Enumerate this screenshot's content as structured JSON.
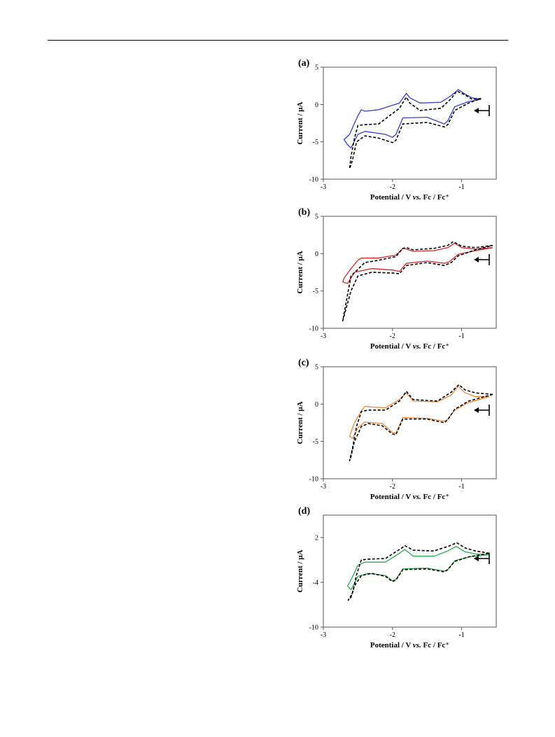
{
  "charts": [
    {
      "label": "(a)",
      "type": "line",
      "xlabel": "Potential / V vs. Fc / Fc⁺",
      "ylabel": "Current / µA",
      "xlim": [
        -3,
        -0.5
      ],
      "ylim": [
        -10,
        5
      ],
      "xticks": [
        -3,
        -2,
        -1
      ],
      "yticks": [
        5,
        0,
        -5,
        -10
      ],
      "color": "#3c3cd2",
      "dashed_color": "#000000",
      "scan_direction": "left",
      "solid": [
        [
          -0.72,
          0.7
        ],
        [
          -0.85,
          0.9
        ],
        [
          -0.95,
          1.4
        ],
        [
          -1.05,
          2.0
        ],
        [
          -1.15,
          1.2
        ],
        [
          -1.3,
          0.3
        ],
        [
          -1.6,
          0.2
        ],
        [
          -1.75,
          0.9
        ],
        [
          -1.8,
          1.5
        ],
        [
          -1.9,
          0.2
        ],
        [
          -2.2,
          -0.7
        ],
        [
          -2.4,
          -0.9
        ],
        [
          -2.45,
          -0.7
        ],
        [
          -2.5,
          -1.5
        ],
        [
          -2.55,
          -2.5
        ],
        [
          -2.62,
          -4.0
        ],
        [
          -2.7,
          -4.7
        ],
        [
          -2.65,
          -5.4
        ],
        [
          -2.6,
          -5.8
        ],
        [
          -2.5,
          -4.0
        ],
        [
          -2.4,
          -3.6
        ],
        [
          -2.1,
          -4.0
        ],
        [
          -2.0,
          -4.4
        ],
        [
          -1.95,
          -4.0
        ],
        [
          -1.85,
          -1.8
        ],
        [
          -1.5,
          -1.7
        ],
        [
          -1.25,
          -2.6
        ],
        [
          -1.2,
          -2.2
        ],
        [
          -1.1,
          -0.3
        ],
        [
          -0.9,
          0.4
        ],
        [
          -0.72,
          0.7
        ]
      ],
      "dashed": [
        [
          -0.72,
          0.8
        ],
        [
          -0.85,
          0.7
        ],
        [
          -0.95,
          1.3
        ],
        [
          -1.07,
          1.8
        ],
        [
          -1.15,
          0.8
        ],
        [
          -1.3,
          -0.5
        ],
        [
          -1.6,
          -0.8
        ],
        [
          -1.75,
          0.2
        ],
        [
          -1.8,
          1.0
        ],
        [
          -1.9,
          -0.5
        ],
        [
          -2.2,
          -2.6
        ],
        [
          -2.4,
          -2.7
        ],
        [
          -2.5,
          -2.8
        ],
        [
          -2.55,
          -4.5
        ],
        [
          -2.6,
          -7.0
        ],
        [
          -2.62,
          -8.6
        ],
        [
          -2.58,
          -7.5
        ],
        [
          -2.52,
          -5.0
        ],
        [
          -2.4,
          -4.2
        ],
        [
          -2.2,
          -4.5
        ],
        [
          -2.0,
          -5.1
        ],
        [
          -1.95,
          -4.8
        ],
        [
          -1.85,
          -2.6
        ],
        [
          -1.5,
          -2.4
        ],
        [
          -1.25,
          -3.0
        ],
        [
          -1.2,
          -2.7
        ],
        [
          -1.1,
          -0.8
        ],
        [
          -0.9,
          0.2
        ],
        [
          -0.72,
          0.8
        ]
      ]
    },
    {
      "label": "(b)",
      "type": "line",
      "xlabel": "Potential / V vs. Fc / Fc⁺",
      "ylabel": "Current / µA",
      "xlim": [
        -3,
        -0.5
      ],
      "ylim": [
        -10,
        5
      ],
      "xticks": [
        -3,
        -2,
        -1
      ],
      "yticks": [
        5,
        0,
        -5,
        -10
      ],
      "color": "#d22828",
      "dashed_color": "#000000",
      "scan_direction": "left",
      "solid": [
        [
          -0.55,
          0.8
        ],
        [
          -0.8,
          0.6
        ],
        [
          -1.0,
          0.8
        ],
        [
          -1.1,
          1.4
        ],
        [
          -1.2,
          0.8
        ],
        [
          -1.4,
          0.4
        ],
        [
          -1.7,
          0.3
        ],
        [
          -1.8,
          0.6
        ],
        [
          -1.85,
          0.7
        ],
        [
          -1.95,
          -0.2
        ],
        [
          -2.2,
          -0.6
        ],
        [
          -2.45,
          -0.6
        ],
        [
          -2.5,
          -0.9
        ],
        [
          -2.6,
          -2.0
        ],
        [
          -2.7,
          -3.3
        ],
        [
          -2.72,
          -3.8
        ],
        [
          -2.65,
          -4.0
        ],
        [
          -2.55,
          -2.5
        ],
        [
          -2.3,
          -2.0
        ],
        [
          -2.0,
          -2.2
        ],
        [
          -1.9,
          -2.4
        ],
        [
          -1.8,
          -1.3
        ],
        [
          -1.5,
          -1.0
        ],
        [
          -1.25,
          -1.3
        ],
        [
          -1.18,
          -1.1
        ],
        [
          -1.05,
          -0.1
        ],
        [
          -0.8,
          0.4
        ],
        [
          -0.55,
          0.8
        ]
      ],
      "dashed": [
        [
          -0.55,
          1.1
        ],
        [
          -0.8,
          0.8
        ],
        [
          -1.0,
          1.0
        ],
        [
          -1.12,
          1.6
        ],
        [
          -1.2,
          1.1
        ],
        [
          -1.4,
          0.7
        ],
        [
          -1.7,
          0.5
        ],
        [
          -1.8,
          0.8
        ],
        [
          -1.85,
          0.7
        ],
        [
          -1.95,
          -0.4
        ],
        [
          -2.2,
          -0.9
        ],
        [
          -2.4,
          -1.2
        ],
        [
          -2.6,
          -3.0
        ],
        [
          -2.66,
          -6.0
        ],
        [
          -2.72,
          -9.0
        ],
        [
          -2.66,
          -7.0
        ],
        [
          -2.6,
          -5.0
        ],
        [
          -2.5,
          -3.0
        ],
        [
          -2.3,
          -2.5
        ],
        [
          -2.0,
          -2.6
        ],
        [
          -1.9,
          -2.7
        ],
        [
          -1.8,
          -1.6
        ],
        [
          -1.5,
          -1.2
        ],
        [
          -1.25,
          -1.6
        ],
        [
          -1.15,
          -1.2
        ],
        [
          -1.05,
          -0.3
        ],
        [
          -0.8,
          0.5
        ],
        [
          -0.55,
          1.1
        ]
      ]
    },
    {
      "label": "(c)",
      "type": "line",
      "xlabel": "Potential / V vs. Fc / Fc⁺",
      "ylabel": "Current / µA",
      "xlim": [
        -3,
        -0.5
      ],
      "ylim": [
        -10,
        5
      ],
      "xticks": [
        -3,
        -2,
        -1
      ],
      "yticks": [
        5,
        0,
        -5,
        -10
      ],
      "color": "#e8883c",
      "dashed_color": "#000000",
      "scan_direction": "left",
      "solid": [
        [
          -0.6,
          1.0
        ],
        [
          -0.8,
          1.0
        ],
        [
          -0.95,
          1.5
        ],
        [
          -1.05,
          2.4
        ],
        [
          -1.15,
          1.2
        ],
        [
          -1.35,
          0.3
        ],
        [
          -1.7,
          0.4
        ],
        [
          -1.8,
          1.5
        ],
        [
          -1.9,
          0.6
        ],
        [
          -2.1,
          -0.5
        ],
        [
          -2.3,
          -0.4
        ],
        [
          -2.4,
          -0.3
        ],
        [
          -2.45,
          -0.9
        ],
        [
          -2.55,
          -2.5
        ],
        [
          -2.62,
          -4.3
        ],
        [
          -2.58,
          -4.6
        ],
        [
          -2.5,
          -3.2
        ],
        [
          -2.4,
          -2.4
        ],
        [
          -2.15,
          -2.6
        ],
        [
          -2.0,
          -3.8
        ],
        [
          -1.95,
          -3.9
        ],
        [
          -1.85,
          -1.8
        ],
        [
          -1.5,
          -1.9
        ],
        [
          -1.25,
          -2.3
        ],
        [
          -1.2,
          -2.0
        ],
        [
          -1.1,
          -0.8
        ],
        [
          -0.9,
          0.2
        ],
        [
          -0.6,
          1.0
        ]
      ],
      "dashed": [
        [
          -0.55,
          1.3
        ],
        [
          -0.8,
          1.5
        ],
        [
          -0.95,
          1.9
        ],
        [
          -1.04,
          2.6
        ],
        [
          -1.15,
          1.6
        ],
        [
          -1.35,
          0.4
        ],
        [
          -1.7,
          0.6
        ],
        [
          -1.8,
          1.7
        ],
        [
          -1.9,
          0.4
        ],
        [
          -2.1,
          -0.8
        ],
        [
          -2.35,
          -0.8
        ],
        [
          -2.45,
          -1.0
        ],
        [
          -2.52,
          -3.0
        ],
        [
          -2.58,
          -6.0
        ],
        [
          -2.62,
          -7.6
        ],
        [
          -2.6,
          -7.0
        ],
        [
          -2.55,
          -5.0
        ],
        [
          -2.45,
          -3.0
        ],
        [
          -2.35,
          -2.6
        ],
        [
          -2.15,
          -2.9
        ],
        [
          -2.0,
          -4.0
        ],
        [
          -1.95,
          -4.1
        ],
        [
          -1.85,
          -2.0
        ],
        [
          -1.5,
          -2.0
        ],
        [
          -1.25,
          -2.5
        ],
        [
          -1.2,
          -2.1
        ],
        [
          -1.1,
          -0.7
        ],
        [
          -0.9,
          0.4
        ],
        [
          -0.55,
          1.3
        ]
      ]
    },
    {
      "label": "(d)",
      "type": "line",
      "xlabel": "Potential / V vs. Fc / Fc⁺",
      "ylabel": "Current / µA",
      "xlim": [
        -3,
        -0.5
      ],
      "ylim": [
        -10,
        5
      ],
      "xticks": [
        -3,
        -2,
        -1
      ],
      "yticks": [
        2,
        -4,
        -10
      ],
      "color": "#2aa852",
      "dashed_color": "#000000",
      "scan_direction": "left",
      "solid": [
        [
          -0.6,
          -0.3
        ],
        [
          -0.8,
          -0.2
        ],
        [
          -0.95,
          0.1
        ],
        [
          -1.08,
          0.8
        ],
        [
          -1.2,
          0.2
        ],
        [
          -1.4,
          -0.5
        ],
        [
          -1.7,
          -0.5
        ],
        [
          -1.82,
          0.4
        ],
        [
          -1.9,
          -0.1
        ],
        [
          -2.1,
          -1.3
        ],
        [
          -2.4,
          -1.3
        ],
        [
          -2.5,
          -1.7
        ],
        [
          -2.58,
          -3.3
        ],
        [
          -2.65,
          -4.5
        ],
        [
          -2.6,
          -5.0
        ],
        [
          -2.5,
          -3.2
        ],
        [
          -2.35,
          -2.8
        ],
        [
          -2.1,
          -3.1
        ],
        [
          -2.0,
          -3.8
        ],
        [
          -1.95,
          -3.6
        ],
        [
          -1.85,
          -2.2
        ],
        [
          -1.5,
          -2.1
        ],
        [
          -1.25,
          -2.5
        ],
        [
          -1.2,
          -2.3
        ],
        [
          -1.1,
          -1.1
        ],
        [
          -0.9,
          -0.6
        ],
        [
          -0.6,
          -0.3
        ]
      ],
      "dashed": [
        [
          -0.6,
          -0.1
        ],
        [
          -0.8,
          0.2
        ],
        [
          -0.95,
          0.6
        ],
        [
          -1.07,
          1.3
        ],
        [
          -1.2,
          0.8
        ],
        [
          -1.4,
          0.2
        ],
        [
          -1.7,
          0.3
        ],
        [
          -1.82,
          0.9
        ],
        [
          -1.9,
          0.4
        ],
        [
          -2.1,
          -0.8
        ],
        [
          -2.35,
          -0.9
        ],
        [
          -2.45,
          -1.0
        ],
        [
          -2.52,
          -3.0
        ],
        [
          -2.58,
          -5.5
        ],
        [
          -2.64,
          -6.4
        ],
        [
          -2.6,
          -6.0
        ],
        [
          -2.55,
          -4.5
        ],
        [
          -2.45,
          -3.1
        ],
        [
          -2.3,
          -2.8
        ],
        [
          -2.1,
          -3.2
        ],
        [
          -2.0,
          -3.9
        ],
        [
          -1.95,
          -3.7
        ],
        [
          -1.85,
          -2.3
        ],
        [
          -1.5,
          -2.2
        ],
        [
          -1.25,
          -2.6
        ],
        [
          -1.2,
          -2.3
        ],
        [
          -1.1,
          -1.2
        ],
        [
          -0.9,
          -0.6
        ],
        [
          -0.6,
          -0.1
        ]
      ]
    }
  ]
}
